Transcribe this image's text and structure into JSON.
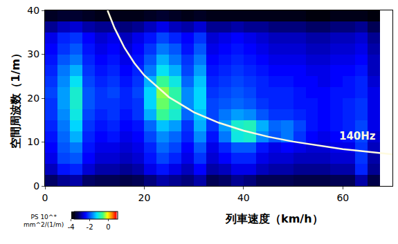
{
  "chart_data": {
    "type": "heatmap",
    "x_label": "列車速度（km/h）",
    "y_label": "空間周波数（1/m）",
    "xlim": [
      0,
      70
    ],
    "ylim": [
      0,
      40
    ],
    "xticks": [
      0,
      20,
      40,
      60
    ],
    "yticks": [
      0,
      10,
      20,
      30,
      40
    ],
    "x": [
      1.25,
      3.75,
      6.25,
      8.75,
      11.25,
      13.75,
      16.25,
      18.75,
      21.25,
      23.75,
      26.25,
      28.75,
      31.25,
      33.75,
      36.25,
      38.75,
      41.25,
      43.75,
      46.25,
      48.75,
      51.25,
      53.75,
      56.25,
      58.75,
      61.25,
      63.75,
      66.25,
      68.75
    ],
    "y": [
      1.25,
      3.75,
      6.25,
      8.75,
      11.25,
      13.75,
      16.25,
      18.75,
      21.25,
      23.75,
      26.25,
      28.75,
      31.25,
      33.75,
      36.25,
      38.75
    ],
    "z": [
      [
        -3.2,
        -3.0,
        -2.9,
        -3.2,
        -3.3,
        -3.3,
        -3.4,
        -3.3,
        -3.1,
        -2.9,
        -3.0,
        -3.1,
        -2.9,
        -3.3,
        -3.2,
        -3.0,
        -3.1,
        -3.3,
        -3.3,
        -3.3,
        -3.4,
        -3.4,
        -3.4,
        -3.3,
        -3.3,
        -2.9,
        -3.4,
        null
      ],
      [
        -2.8,
        -2.4,
        -2.3,
        -2.7,
        -2.9,
        -2.9,
        -3.0,
        -2.9,
        -2.6,
        -2.4,
        -2.6,
        -2.8,
        -2.5,
        -2.9,
        -2.8,
        -2.6,
        -2.6,
        -2.8,
        -2.9,
        -2.9,
        -3.0,
        -3.0,
        -3.0,
        -2.9,
        -2.9,
        -2.3,
        -3.0,
        null
      ],
      [
        -2.6,
        -2.1,
        -2.0,
        -2.5,
        -2.7,
        -2.7,
        -2.8,
        -2.7,
        -2.4,
        -2.1,
        -2.3,
        -2.6,
        -2.2,
        -2.7,
        -2.5,
        -2.3,
        -2.3,
        -2.6,
        -2.7,
        -2.7,
        -2.8,
        -2.8,
        -2.8,
        -2.7,
        -2.7,
        -2.2,
        -2.9,
        null
      ],
      [
        -2.5,
        -2.0,
        -1.8,
        -2.4,
        -2.6,
        -2.6,
        -2.7,
        -2.6,
        -2.3,
        -1.9,
        -2.1,
        -2.5,
        -2.0,
        -2.6,
        -2.3,
        -2.0,
        -2.0,
        -2.4,
        -2.6,
        -2.5,
        -2.6,
        -2.7,
        -2.7,
        -2.6,
        -2.6,
        -2.2,
        -2.8,
        null
      ],
      [
        -2.4,
        -1.9,
        -1.5,
        -2.3,
        -2.5,
        -2.4,
        -2.6,
        -2.5,
        -2.1,
        -1.7,
        -1.9,
        -2.3,
        -1.7,
        -2.4,
        -1.8,
        -1.1,
        -1.0,
        -1.7,
        -2.0,
        -1.8,
        -2.2,
        -2.5,
        -2.6,
        -2.5,
        -2.4,
        -2.1,
        -2.7,
        null
      ],
      [
        -2.3,
        -1.8,
        -1.3,
        -2.2,
        -2.4,
        -2.3,
        -2.5,
        -2.4,
        -1.9,
        -1.4,
        -1.6,
        -2.2,
        -1.5,
        -2.2,
        -1.6,
        -1.0,
        -0.9,
        -1.5,
        -1.9,
        -1.8,
        -2.1,
        -2.4,
        -2.5,
        -2.4,
        -2.3,
        -2.1,
        -2.6,
        null
      ],
      [
        -2.2,
        -1.7,
        -1.1,
        -2.1,
        -2.3,
        -2.2,
        -2.4,
        -2.2,
        -1.5,
        -0.7,
        -1.0,
        -1.9,
        -1.4,
        -2.1,
        -1.8,
        -1.6,
        -1.7,
        -2.0,
        -2.2,
        -2.2,
        -2.3,
        -2.4,
        -2.5,
        -2.4,
        -2.3,
        -2.2,
        -2.6,
        null
      ],
      [
        -2.2,
        -1.6,
        -1.0,
        -2.0,
        -2.2,
        -2.2,
        -2.3,
        -2.2,
        -1.3,
        -0.5,
        -0.8,
        -1.7,
        -1.3,
        -2.1,
        -2.0,
        -1.9,
        -2.0,
        -2.2,
        -2.3,
        -2.3,
        -2.4,
        -2.4,
        -2.5,
        -2.4,
        -2.3,
        -2.2,
        -2.6,
        null
      ],
      [
        -2.1,
        -1.6,
        -1.0,
        -2.0,
        -2.2,
        -2.1,
        -2.3,
        -2.1,
        -1.3,
        -0.4,
        -0.8,
        -1.7,
        -1.3,
        -2.2,
        -2.1,
        -2.0,
        -2.1,
        -2.3,
        -2.3,
        -2.3,
        -2.4,
        -2.5,
        -2.5,
        -2.4,
        -2.4,
        -2.3,
        -2.6,
        null
      ],
      [
        -2.2,
        -1.7,
        -1.2,
        -2.1,
        -2.3,
        -2.2,
        -2.4,
        -2.2,
        -1.5,
        -0.7,
        -1.1,
        -1.9,
        -1.4,
        -2.3,
        -2.2,
        -2.1,
        -2.2,
        -2.3,
        -2.4,
        -2.4,
        -2.5,
        -2.5,
        -2.6,
        -2.5,
        -2.4,
        -2.3,
        -2.7,
        null
      ],
      [
        -2.3,
        -1.8,
        -1.5,
        -2.2,
        -2.4,
        -2.3,
        -2.5,
        -2.3,
        -1.8,
        -1.2,
        -1.5,
        -2.1,
        -1.6,
        -2.4,
        -2.3,
        -2.2,
        -2.3,
        -2.4,
        -2.5,
        -2.5,
        -2.5,
        -2.6,
        -2.6,
        -2.5,
        -2.5,
        -2.4,
        -2.8,
        null
      ],
      [
        -2.4,
        -2.0,
        -1.8,
        -2.3,
        -2.5,
        -2.4,
        -2.6,
        -2.4,
        -2.0,
        -1.5,
        -1.8,
        -2.2,
        -1.8,
        -2.5,
        -2.4,
        -2.3,
        -2.4,
        -2.5,
        -2.6,
        -2.6,
        -2.6,
        -2.7,
        -2.7,
        -2.6,
        -2.6,
        -2.5,
        -2.8,
        null
      ],
      [
        -2.5,
        -2.2,
        -2.0,
        -2.4,
        -2.6,
        -2.5,
        -2.7,
        -2.5,
        -2.2,
        -1.8,
        -2.0,
        -2.4,
        -2.0,
        -2.6,
        -2.5,
        -2.4,
        -2.5,
        -2.6,
        -2.7,
        -2.7,
        -2.7,
        -2.8,
        -2.8,
        -2.7,
        -2.7,
        -2.6,
        -2.9,
        null
      ],
      [
        -2.6,
        -2.3,
        -2.2,
        -2.5,
        -2.7,
        -2.6,
        -2.8,
        -2.6,
        -2.4,
        -2.1,
        -2.3,
        -2.5,
        -2.2,
        -2.7,
        -2.6,
        -2.5,
        -2.6,
        -2.7,
        -2.8,
        -2.8,
        -2.8,
        -2.9,
        -2.9,
        -2.8,
        -2.8,
        -2.7,
        -3.0,
        null
      ],
      [
        -3.0,
        -2.8,
        -2.7,
        -2.9,
        -3.0,
        -3.0,
        -3.1,
        -3.0,
        -2.8,
        -2.6,
        -2.8,
        -2.9,
        -2.7,
        -3.0,
        -3.0,
        -2.9,
        -3.0,
        -3.0,
        -3.1,
        -3.1,
        -3.1,
        -3.2,
        -3.2,
        -3.1,
        -3.1,
        -3.0,
        -3.3,
        null
      ],
      [
        -3.7,
        -3.6,
        -3.6,
        -3.7,
        -3.8,
        -3.8,
        -3.8,
        -3.8,
        -3.7,
        -3.6,
        -3.7,
        -3.8,
        -3.7,
        -3.8,
        -3.8,
        -3.8,
        -3.8,
        -3.8,
        -3.8,
        -3.8,
        -3.8,
        -3.9,
        -3.9,
        -3.8,
        -3.8,
        -3.8,
        -3.9,
        null
      ]
    ],
    "colorbar_range": [
      -4,
      1
    ],
    "colorbar_ticks": [
      -4,
      -2,
      0
    ],
    "colorbar_label": [
      "PS 10^*",
      "mm^2/(1/m)"
    ],
    "series": [
      {
        "name": "140Hz",
        "type": "line",
        "color": "#fffbe0",
        "x": [
          12.6,
          14,
          16,
          18,
          20,
          25,
          30,
          35,
          40,
          45,
          50,
          55,
          60,
          65,
          70
        ],
        "values": [
          40,
          36,
          31.5,
          28,
          25.2,
          20.2,
          16.8,
          14.4,
          12.6,
          11.2,
          10.1,
          9.2,
          8.4,
          7.8,
          7.2
        ]
      }
    ]
  }
}
